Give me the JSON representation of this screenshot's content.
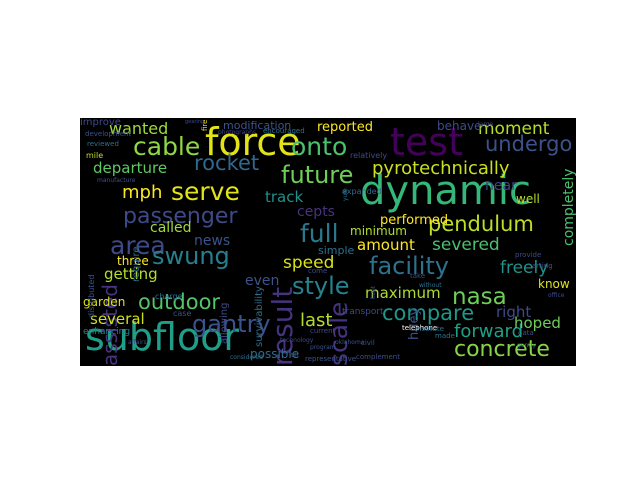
{
  "words": [
    {
      "text": "force",
      "color": "#e2e418"
    },
    {
      "text": "test",
      "color": "#44015a"
    },
    {
      "text": "dynamic",
      "color": "#35b779"
    },
    {
      "text": "subfloor",
      "color": "#1f9e89"
    },
    {
      "text": "cable",
      "color": "#8fd744"
    },
    {
      "text": "onto",
      "color": "#4ac16d"
    },
    {
      "text": "rocket",
      "color": "#31688e"
    },
    {
      "text": "undergo",
      "color": "#3b528b"
    },
    {
      "text": "moment",
      "color": "#b5de2b"
    },
    {
      "text": "wanted",
      "color": "#a0da39"
    },
    {
      "text": "serve",
      "color": "#e2e418"
    },
    {
      "text": "future",
      "color": "#6ece58"
    },
    {
      "text": "pyrotechnically",
      "color": "#cae11f"
    },
    {
      "text": "passenger",
      "color": "#3e4a89"
    },
    {
      "text": "departure",
      "color": "#5ec962"
    },
    {
      "text": "mph",
      "color": "#fde725"
    },
    {
      "text": "pendulum",
      "color": "#bddf26"
    },
    {
      "text": "area",
      "color": "#3e4a89"
    },
    {
      "text": "swung",
      "color": "#277f8e"
    },
    {
      "text": "full",
      "color": "#2a788e"
    },
    {
      "text": "facility",
      "color": "#2c728e"
    },
    {
      "text": "assisted",
      "color": "#46337e"
    },
    {
      "text": "result",
      "color": "#46337e"
    },
    {
      "text": "scale",
      "color": "#46337e"
    },
    {
      "text": "style",
      "color": "#26828e"
    },
    {
      "text": "nasa",
      "color": "#6ece58"
    },
    {
      "text": "compare",
      "color": "#1f978b"
    },
    {
      "text": "outdoor",
      "color": "#52c569"
    },
    {
      "text": "gantry",
      "color": "#3b528b"
    },
    {
      "text": "concrete",
      "color": "#86d549"
    },
    {
      "text": "forward",
      "color": "#1fa187"
    },
    {
      "text": "speed",
      "color": "#d8e219"
    },
    {
      "text": "maximum",
      "color": "#addc30"
    },
    {
      "text": "last",
      "color": "#b5de2b"
    },
    {
      "text": "amount",
      "color": "#fde725"
    },
    {
      "text": "severed",
      "color": "#4ac16d"
    },
    {
      "text": "freely",
      "color": "#21918c"
    },
    {
      "text": "right",
      "color": "#3e4a89"
    },
    {
      "text": "hoped",
      "color": "#6ece58"
    },
    {
      "text": "several",
      "color": "#d0e11c"
    },
    {
      "text": "getting",
      "color": "#b5de2b"
    },
    {
      "text": "garden",
      "color": "#dde318"
    },
    {
      "text": "possible",
      "color": "#2e6e8e"
    },
    {
      "text": "news",
      "color": "#3b528b"
    },
    {
      "text": "even",
      "color": "#3b528b"
    },
    {
      "text": "called",
      "color": "#a0da39"
    },
    {
      "text": "track",
      "color": "#21918c"
    },
    {
      "text": "near",
      "color": "#414487"
    },
    {
      "text": "performed",
      "color": "#fde725"
    },
    {
      "text": "reported",
      "color": "#fde725"
    },
    {
      "text": "behave",
      "color": "#3e4a89"
    },
    {
      "text": "modification",
      "color": "#3b528b"
    },
    {
      "text": "minimum",
      "color": "#b5de2b"
    },
    {
      "text": "huey",
      "color": "#3b528b"
    },
    {
      "text": "completely",
      "color": "#4ac16d"
    },
    {
      "text": "know",
      "color": "#dde318"
    },
    {
      "text": "well",
      "color": "#b5de2b"
    },
    {
      "text": "three",
      "color": "#fde725"
    },
    {
      "text": "simple",
      "color": "#2c728e"
    },
    {
      "text": "cepts",
      "color": "#46337e"
    },
    {
      "text": "survivability",
      "color": "#2e6e8e"
    },
    {
      "text": "allowing",
      "color": "#3e4a89"
    },
    {
      "text": "require",
      "color": "#31688e"
    },
    {
      "text": "transport",
      "color": "#3e4a89"
    },
    {
      "text": "enhancing",
      "color": "#277f8e"
    },
    {
      "text": "representative",
      "color": "#3b528b"
    },
    {
      "text": "telephone",
      "color": "#ffffff"
    },
    {
      "text": "relatively",
      "color": "#3e4a89"
    },
    {
      "text": "expanded",
      "color": "#31688e"
    },
    {
      "text": "encouraged",
      "color": "#2c728e"
    },
    {
      "text": "photographs",
      "color": "#3e4a89"
    },
    {
      "text": "development",
      "color": "#3b528b"
    },
    {
      "text": "reviewed",
      "color": "#2e6e8e"
    },
    {
      "text": "distributed",
      "color": "#3b528b"
    },
    {
      "text": "current",
      "color": "#3e4a89"
    },
    {
      "text": "complement",
      "color": "#3e4a89"
    },
    {
      "text": "institute",
      "color": "#2c728e"
    },
    {
      "text": "charge",
      "color": "#2c728e"
    },
    {
      "text": "mile",
      "color": "#c2df23"
    },
    {
      "text": "case",
      "color": "#3b528b"
    },
    {
      "text": "fire",
      "color": "#fde725"
    },
    {
      "text": "come",
      "color": "#3e4a89"
    },
    {
      "text": "take",
      "color": "#3e4a89"
    },
    {
      "text": "data",
      "color": "#3b528b"
    },
    {
      "text": "provide",
      "color": "#3e4a89"
    },
    {
      "text": "civil",
      "color": "#3b528b"
    },
    {
      "text": "considered",
      "color": "#2c728e"
    },
    {
      "text": "program",
      "color": "#3b528b"
    },
    {
      "text": "technology",
      "color": "#3e4a89"
    },
    {
      "text": "oklahoma",
      "color": "#3b528b"
    },
    {
      "text": "without",
      "color": "#2c728e"
    },
    {
      "text": "large",
      "color": "#3e4a89"
    },
    {
      "text": "affairs",
      "color": "#3b528b"
    },
    {
      "text": "made",
      "color": "#2c728e"
    },
    {
      "text": "office",
      "color": "#3e4a89"
    },
    {
      "text": "arting",
      "color": "#3b528b"
    },
    {
      "text": "yule",
      "color": "#2c728e"
    },
    {
      "text": "kept",
      "color": "#3e4a89"
    },
    {
      "text": "tilt",
      "color": "#3b528b"
    },
    {
      "text": "gently",
      "color": "#2c728e"
    },
    {
      "text": "gearing",
      "color": "#3e4a89"
    },
    {
      "text": "manufacture",
      "color": "#3b528b"
    },
    {
      "text": "improve",
      "color": "#3e4a89"
    }
  ]
}
